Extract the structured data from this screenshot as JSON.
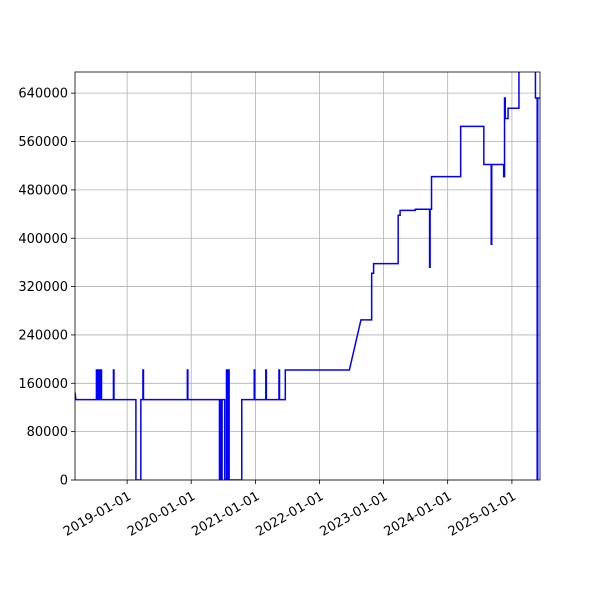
{
  "chart_data": {
    "type": "line",
    "title": "",
    "xlabel": "",
    "ylabel": "",
    "grid": true,
    "xlim": [
      "2018-03-10",
      "2025-06-10"
    ],
    "ylim": [
      0,
      675000
    ],
    "x_ticks": [
      "2019-01-01",
      "2020-01-01",
      "2021-01-01",
      "2022-01-01",
      "2023-01-01",
      "2024-01-01",
      "2025-01-01"
    ],
    "y_ticks": [
      0,
      80000,
      160000,
      240000,
      320000,
      400000,
      480000,
      560000,
      640000
    ],
    "y_tick_labels": [
      "0",
      "80000",
      "160000",
      "240000",
      "320000",
      "400000",
      "480000",
      "560000",
      "640000"
    ],
    "series": [
      {
        "color": "#0000ff",
        "points": [
          [
            "2018-03-10",
            145000
          ],
          [
            "2018-03-15",
            133000
          ],
          [
            "2018-07-10",
            133000
          ],
          [
            "2018-07-10",
            182000
          ],
          [
            "2018-07-14",
            182000
          ],
          [
            "2018-07-14",
            133000
          ],
          [
            "2018-07-20",
            133000
          ],
          [
            "2018-07-20",
            182000
          ],
          [
            "2018-07-26",
            182000
          ],
          [
            "2018-07-26",
            133000
          ],
          [
            "2018-08-03",
            133000
          ],
          [
            "2018-08-03",
            182000
          ],
          [
            "2018-08-08",
            182000
          ],
          [
            "2018-08-08",
            133000
          ],
          [
            "2018-10-15",
            133000
          ],
          [
            "2018-10-15",
            182000
          ],
          [
            "2018-10-18",
            182000
          ],
          [
            "2018-10-18",
            133000
          ],
          [
            "2019-02-20",
            133000
          ],
          [
            "2019-02-20",
            0
          ],
          [
            "2019-03-20",
            0
          ],
          [
            "2019-03-20",
            133000
          ],
          [
            "2019-04-01",
            133000
          ],
          [
            "2019-04-01",
            182000
          ],
          [
            "2019-04-04",
            182000
          ],
          [
            "2019-04-04",
            133000
          ],
          [
            "2019-12-10",
            133000
          ],
          [
            "2019-12-10",
            182000
          ],
          [
            "2019-12-13",
            182000
          ],
          [
            "2019-12-13",
            133000
          ],
          [
            "2020-06-10",
            133000
          ],
          [
            "2020-06-10",
            0
          ],
          [
            "2020-06-15",
            0
          ],
          [
            "2020-06-15",
            133000
          ],
          [
            "2020-06-20",
            133000
          ],
          [
            "2020-06-20",
            0
          ],
          [
            "2020-06-25",
            0
          ],
          [
            "2020-06-25",
            133000
          ],
          [
            "2020-07-10",
            133000
          ],
          [
            "2020-07-10",
            0
          ],
          [
            "2020-07-20",
            0
          ],
          [
            "2020-07-20",
            182000
          ],
          [
            "2020-07-24",
            182000
          ],
          [
            "2020-07-24",
            0
          ],
          [
            "2020-08-01",
            0
          ],
          [
            "2020-08-01",
            182000
          ],
          [
            "2020-08-04",
            182000
          ],
          [
            "2020-08-04",
            0
          ],
          [
            "2020-10-15",
            0
          ],
          [
            "2020-10-15",
            133000
          ],
          [
            "2020-12-25",
            133000
          ],
          [
            "2020-12-25",
            182000
          ],
          [
            "2020-12-28",
            182000
          ],
          [
            "2020-12-28",
            133000
          ],
          [
            "2021-03-01",
            133000
          ],
          [
            "2021-03-01",
            182000
          ],
          [
            "2021-03-04",
            182000
          ],
          [
            "2021-03-04",
            133000
          ],
          [
            "2021-05-15",
            133000
          ],
          [
            "2021-05-15",
            182000
          ],
          [
            "2021-05-18",
            182000
          ],
          [
            "2021-05-18",
            133000
          ],
          [
            "2021-06-20",
            133000
          ],
          [
            "2021-06-20",
            182000
          ],
          [
            "2022-06-20",
            182000
          ],
          [
            "2022-08-25",
            265000
          ],
          [
            "2022-10-25",
            265000
          ],
          [
            "2022-10-25",
            342000
          ],
          [
            "2022-11-05",
            342000
          ],
          [
            "2022-11-05",
            358000
          ],
          [
            "2023-03-25",
            358000
          ],
          [
            "2023-03-25",
            438000
          ],
          [
            "2023-04-05",
            438000
          ],
          [
            "2023-04-05",
            446000
          ],
          [
            "2023-07-01",
            446000
          ],
          [
            "2023-07-01",
            448000
          ],
          [
            "2023-09-20",
            448000
          ],
          [
            "2023-09-20",
            352000
          ],
          [
            "2023-09-23",
            352000
          ],
          [
            "2023-09-23",
            448000
          ],
          [
            "2023-10-01",
            448000
          ],
          [
            "2023-10-01",
            502000
          ],
          [
            "2024-03-15",
            502000
          ],
          [
            "2024-03-15",
            585000
          ],
          [
            "2024-07-25",
            585000
          ],
          [
            "2024-07-25",
            522000
          ],
          [
            "2024-09-05",
            522000
          ],
          [
            "2024-09-05",
            390000
          ],
          [
            "2024-09-08",
            390000
          ],
          [
            "2024-09-08",
            522000
          ],
          [
            "2024-11-15",
            522000
          ],
          [
            "2024-11-15",
            502000
          ],
          [
            "2024-11-20",
            502000
          ],
          [
            "2024-11-20",
            632000
          ],
          [
            "2024-11-24",
            632000
          ],
          [
            "2024-11-24",
            598000
          ],
          [
            "2024-12-10",
            598000
          ],
          [
            "2024-12-10",
            615000
          ],
          [
            "2025-02-10",
            615000
          ],
          [
            "2025-02-10",
            680000
          ],
          [
            "2025-05-15",
            680000
          ],
          [
            "2025-05-15",
            632000
          ],
          [
            "2025-05-25",
            632000
          ],
          [
            "2025-05-25",
            0
          ],
          [
            "2025-05-28",
            0
          ],
          [
            "2025-05-28",
            632000
          ],
          [
            "2025-06-10",
            632000
          ]
        ]
      }
    ]
  }
}
